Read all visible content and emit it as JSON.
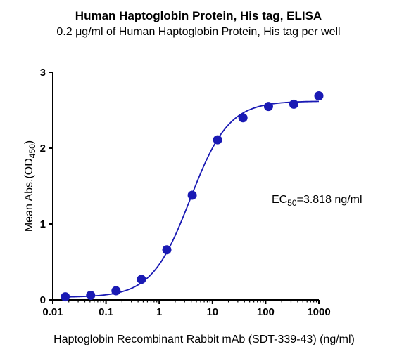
{
  "chart_data": {
    "type": "scatter",
    "title": "Human Haptoglobin Protein, His tag, ELISA",
    "subtitle": "0.2 μg/ml of Human Haptoglobin Protein, His tag per well",
    "xlabel": "Haptoglobin Recombinant Rabbit mAb (SDT-339-43) (ng/ml)",
    "ylabel": {
      "main": "Mean Abs.(OD",
      "sub": "450",
      "end": ")"
    },
    "xscale": "log",
    "xlim": [
      0.01,
      1000
    ],
    "ylim": [
      0,
      3
    ],
    "xticks": [
      {
        "value": 0.01,
        "label": "0.01"
      },
      {
        "value": 0.1,
        "label": "0.1"
      },
      {
        "value": 1,
        "label": "1"
      },
      {
        "value": 10,
        "label": "10"
      },
      {
        "value": 100,
        "label": "100"
      },
      {
        "value": 1000,
        "label": "1000"
      }
    ],
    "yticks": [
      {
        "value": 0,
        "label": "0"
      },
      {
        "value": 1,
        "label": "1"
      },
      {
        "value": 2,
        "label": "2"
      },
      {
        "value": 3,
        "label": "3"
      }
    ],
    "grid": false,
    "series": [
      {
        "color": "#1a1ab4",
        "x": [
          0.0172,
          0.0514,
          0.154,
          0.463,
          1.39,
          4.17,
          12.5,
          37.5,
          113,
          338,
          1000
        ],
        "y": [
          0.04,
          0.06,
          0.12,
          0.27,
          0.66,
          1.38,
          2.11,
          2.4,
          2.55,
          2.58,
          2.69
        ]
      }
    ],
    "fit": {
      "bottom": 0.035,
      "top": 2.62,
      "ec50": 3.818,
      "hill": 1.2,
      "color": "#1a1ab4"
    },
    "annotation": {
      "prefix": "EC",
      "sub": "50",
      "suffix": "=3.818 ng/ml"
    }
  }
}
